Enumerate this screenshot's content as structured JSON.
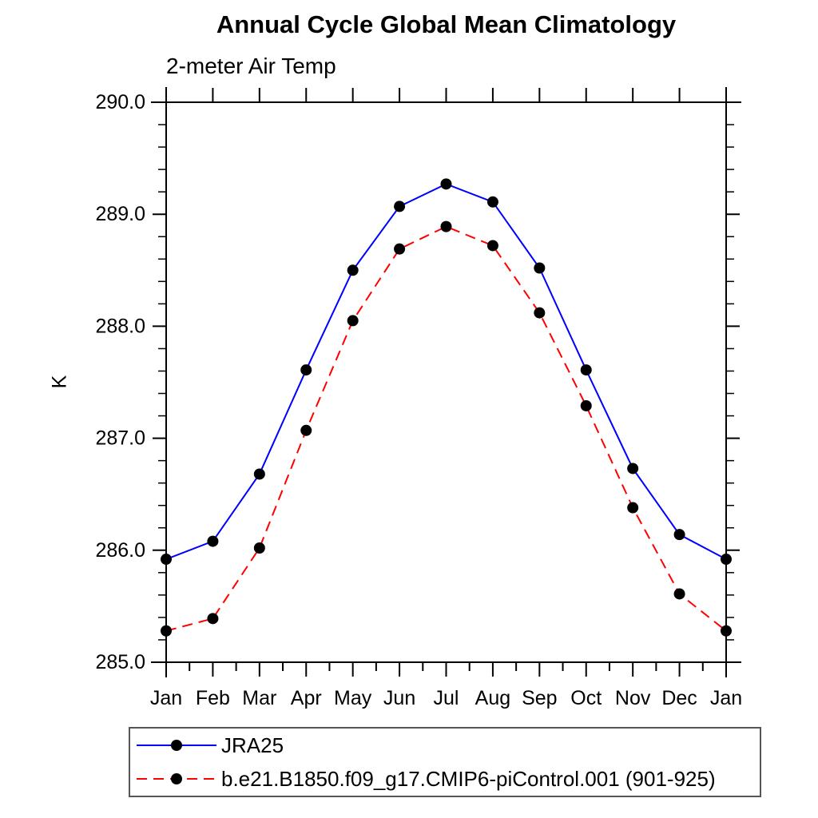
{
  "page": {
    "background": "#ffffff"
  },
  "chart_data": {
    "type": "line",
    "title": "Annual Cycle Global Mean Climatology",
    "subtitle": "2-meter Air Temp",
    "ylabel": "K",
    "xlabel": "",
    "x_categories": [
      "Jan",
      "Feb",
      "Mar",
      "Apr",
      "May",
      "Jun",
      "Jul",
      "Aug",
      "Sep",
      "Oct",
      "Nov",
      "Dec",
      "Jan"
    ],
    "ylim": [
      285.0,
      290.0
    ],
    "y_major_tick_interval": 1.0,
    "y_minor_tick_interval": 0.2,
    "y_tick_labels": [
      "285.0",
      "286.0",
      "287.0",
      "288.0",
      "289.0",
      "290.0"
    ],
    "grid": false,
    "legend_position": "bottom-left-box",
    "axis_color": "#000000",
    "series": [
      {
        "name": "JRA25",
        "color": "#0000ff",
        "line_style": "solid",
        "marker": "filled-circle",
        "marker_color": "#000000",
        "values": [
          285.92,
          286.08,
          286.68,
          287.61,
          288.5,
          289.07,
          289.27,
          289.11,
          288.52,
          287.61,
          286.73,
          286.14,
          285.92
        ]
      },
      {
        "name": "b.e21.B1850.f09_g17.CMIP6-piControl.001 (901-925)",
        "color": "#ff0000",
        "line_style": "dashed",
        "marker": "filled-circle",
        "marker_color": "#000000",
        "values": [
          285.28,
          285.39,
          286.02,
          287.07,
          288.05,
          288.69,
          288.89,
          288.72,
          288.12,
          287.29,
          286.38,
          285.61,
          285.28
        ]
      }
    ]
  }
}
